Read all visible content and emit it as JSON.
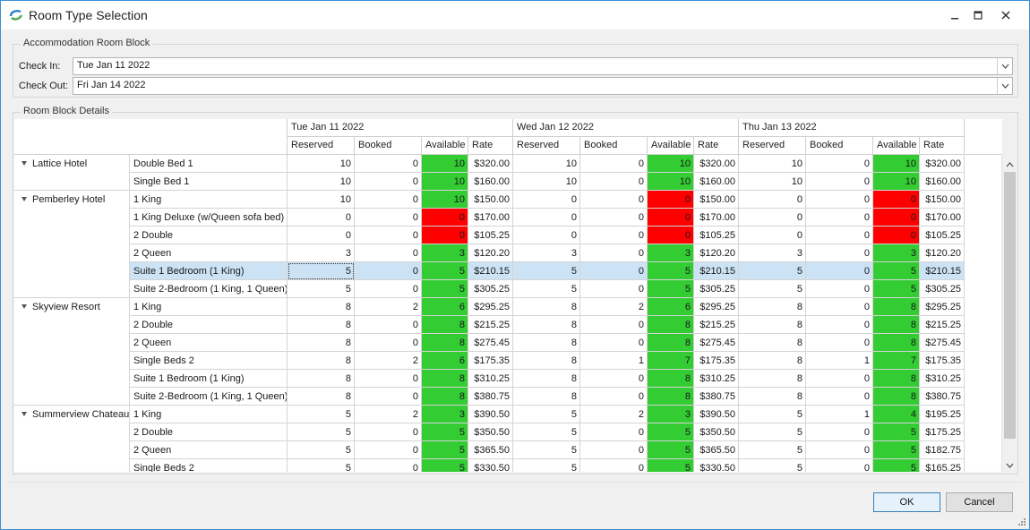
{
  "window": {
    "title": "Room Type Selection"
  },
  "block": {
    "title": "Accommodation Room Block",
    "checkin_label": "Check In:",
    "checkin_value": "Tue Jan 11 2022",
    "checkout_label": "Check Out:",
    "checkout_value": "Fri Jan 14 2022"
  },
  "details": {
    "title": "Room Block Details",
    "dates": [
      "Tue Jan 11 2022",
      "Wed Jan 12 2022",
      "Thu Jan 13 2022"
    ],
    "columns": [
      "Reserved",
      "Booked",
      "Available",
      "Rate"
    ]
  },
  "colors": {
    "available": "#33cc33",
    "unavailable": "#ff0000",
    "selected_row": "#cce3f5"
  },
  "groups": [
    {
      "name": "Lattice Hotel",
      "rooms": [
        {
          "name": "Double Bed 1",
          "days": [
            [
              10,
              0,
              10,
              "$320.00"
            ],
            [
              10,
              0,
              10,
              "$320.00"
            ],
            [
              10,
              0,
              10,
              "$320.00"
            ]
          ]
        },
        {
          "name": "Single Bed 1",
          "days": [
            [
              10,
              0,
              10,
              "$160.00"
            ],
            [
              10,
              0,
              10,
              "$160.00"
            ],
            [
              10,
              0,
              10,
              "$160.00"
            ]
          ]
        }
      ]
    },
    {
      "name": "Pemberley Hotel",
      "rooms": [
        {
          "name": "1 King",
          "days": [
            [
              10,
              0,
              10,
              "$150.00"
            ],
            [
              0,
              0,
              0,
              "$150.00"
            ],
            [
              0,
              0,
              0,
              "$150.00"
            ]
          ]
        },
        {
          "name": "1 King Deluxe (w/Queen sofa bed)",
          "days": [
            [
              0,
              0,
              0,
              "$170.00"
            ],
            [
              0,
              0,
              0,
              "$170.00"
            ],
            [
              0,
              0,
              0,
              "$170.00"
            ]
          ]
        },
        {
          "name": "2 Double",
          "days": [
            [
              0,
              0,
              0,
              "$105.25"
            ],
            [
              0,
              0,
              0,
              "$105.25"
            ],
            [
              0,
              0,
              0,
              "$105.25"
            ]
          ]
        },
        {
          "name": "2 Queen",
          "days": [
            [
              3,
              0,
              3,
              "$120.20"
            ],
            [
              3,
              0,
              3,
              "$120.20"
            ],
            [
              3,
              0,
              3,
              "$120.20"
            ]
          ]
        },
        {
          "name": "Suite 1 Bedroom (1 King)",
          "selected": true,
          "days": [
            [
              5,
              0,
              5,
              "$210.15"
            ],
            [
              5,
              0,
              5,
              "$210.15"
            ],
            [
              5,
              0,
              5,
              "$210.15"
            ]
          ]
        },
        {
          "name": "Suite 2-Bedroom (1 King, 1 Queen)",
          "days": [
            [
              5,
              0,
              5,
              "$305.25"
            ],
            [
              5,
              0,
              5,
              "$305.25"
            ],
            [
              5,
              0,
              5,
              "$305.25"
            ]
          ]
        }
      ]
    },
    {
      "name": "Skyview Resort",
      "rooms": [
        {
          "name": "1 King",
          "days": [
            [
              8,
              2,
              6,
              "$295.25"
            ],
            [
              8,
              2,
              6,
              "$295.25"
            ],
            [
              8,
              0,
              8,
              "$295.25"
            ]
          ]
        },
        {
          "name": "2 Double",
          "days": [
            [
              8,
              0,
              8,
              "$215.25"
            ],
            [
              8,
              0,
              8,
              "$215.25"
            ],
            [
              8,
              0,
              8,
              "$215.25"
            ]
          ]
        },
        {
          "name": "2 Queen",
          "days": [
            [
              8,
              0,
              8,
              "$275.45"
            ],
            [
              8,
              0,
              8,
              "$275.45"
            ],
            [
              8,
              0,
              8,
              "$275.45"
            ]
          ]
        },
        {
          "name": "Single Beds 2",
          "days": [
            [
              8,
              2,
              6,
              "$175.35"
            ],
            [
              8,
              1,
              7,
              "$175.35"
            ],
            [
              8,
              1,
              7,
              "$175.35"
            ]
          ]
        },
        {
          "name": "Suite 1 Bedroom (1 King)",
          "days": [
            [
              8,
              0,
              8,
              "$310.25"
            ],
            [
              8,
              0,
              8,
              "$310.25"
            ],
            [
              8,
              0,
              8,
              "$310.25"
            ]
          ]
        },
        {
          "name": "Suite 2-Bedroom (1 King, 1 Queen)",
          "days": [
            [
              8,
              0,
              8,
              "$380.75"
            ],
            [
              8,
              0,
              8,
              "$380.75"
            ],
            [
              8,
              0,
              8,
              "$380.75"
            ]
          ]
        }
      ]
    },
    {
      "name": "Summerview Chateau",
      "rooms": [
        {
          "name": "1 King",
          "days": [
            [
              5,
              2,
              3,
              "$390.50"
            ],
            [
              5,
              2,
              3,
              "$390.50"
            ],
            [
              5,
              1,
              4,
              "$195.25"
            ]
          ]
        },
        {
          "name": "2 Double",
          "days": [
            [
              5,
              0,
              5,
              "$350.50"
            ],
            [
              5,
              0,
              5,
              "$350.50"
            ],
            [
              5,
              0,
              5,
              "$175.25"
            ]
          ]
        },
        {
          "name": "2 Queen",
          "days": [
            [
              5,
              0,
              5,
              "$365.50"
            ],
            [
              5,
              0,
              5,
              "$365.50"
            ],
            [
              5,
              0,
              5,
              "$182.75"
            ]
          ]
        },
        {
          "name": "Single Beds 2",
          "days": [
            [
              5,
              0,
              5,
              "$330.50"
            ],
            [
              5,
              0,
              5,
              "$330.50"
            ],
            [
              5,
              0,
              5,
              "$165.25"
            ]
          ]
        }
      ]
    }
  ],
  "buttons": {
    "ok": "OK",
    "cancel": "Cancel"
  }
}
